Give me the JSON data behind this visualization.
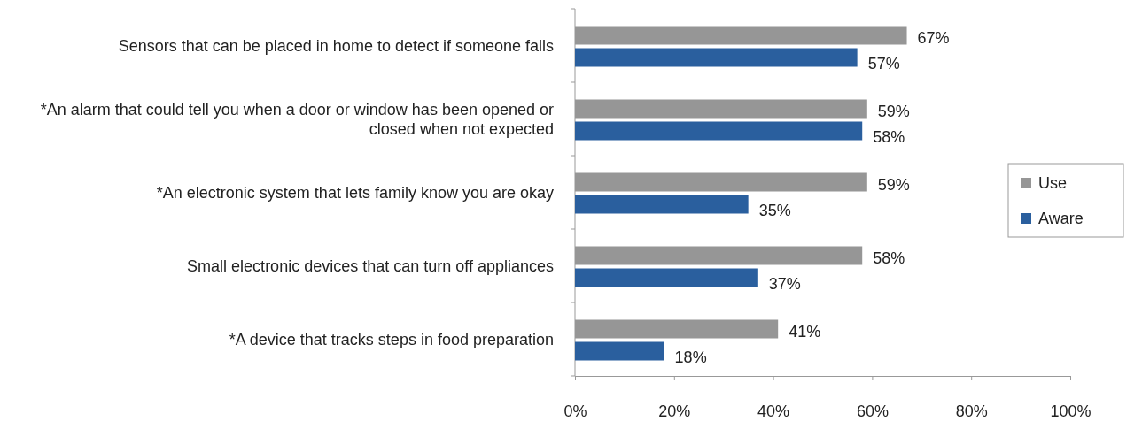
{
  "chart_data": {
    "type": "bar",
    "orientation": "horizontal",
    "categories": [
      "Sensors that can be placed in home to detect if someone falls",
      "*An alarm that could tell you when a door or window has been opened or closed when not expected",
      "*An electronic system that lets family know you are okay",
      "Small electronic devices that can turn off appliances",
      "*A device that tracks steps in food preparation"
    ],
    "series": [
      {
        "name": "Use",
        "color": "#969696",
        "values": [
          67,
          59,
          59,
          58,
          41
        ],
        "value_labels": [
          "67%",
          "59%",
          "59%",
          "58%",
          "41%"
        ]
      },
      {
        "name": "Aware",
        "color": "#2a5f9e",
        "values": [
          57,
          58,
          35,
          37,
          18
        ],
        "value_labels": [
          "57%",
          "58%",
          "35%",
          "37%",
          "18%"
        ]
      }
    ],
    "xlim": [
      0,
      100
    ],
    "xticks": [
      {
        "value": 0,
        "label": "0%"
      },
      {
        "value": 20,
        "label": "20%"
      },
      {
        "value": 40,
        "label": "40%"
      },
      {
        "value": 60,
        "label": "60%"
      },
      {
        "value": 80,
        "label": "80%"
      },
      {
        "value": 100,
        "label": "100%"
      }
    ],
    "grid": false,
    "legend": "right"
  }
}
